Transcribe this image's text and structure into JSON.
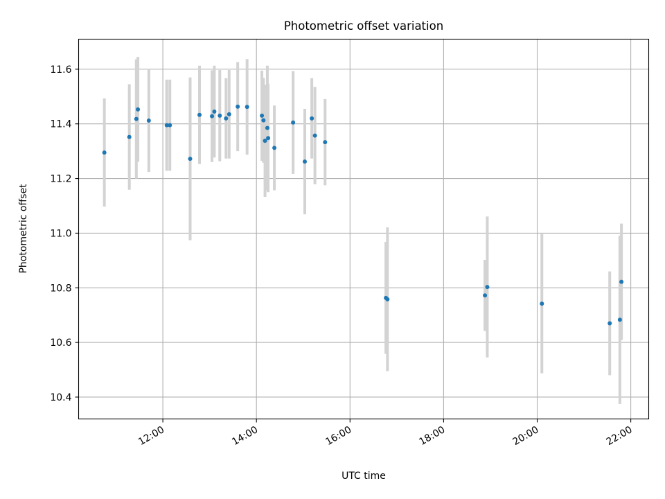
{
  "chart_data": {
    "type": "scatter",
    "title": "Photometric offset variation",
    "xlabel": "UTC time",
    "ylabel": "Photometric offset",
    "x_ticks": [
      "12:00",
      "14:00",
      "16:00",
      "18:00",
      "20:00",
      "22:00"
    ],
    "y_ticks": [
      "10.4",
      "10.6",
      "10.8",
      "11.0",
      "11.2",
      "11.4",
      "11.6"
    ],
    "xlim": [
      "10:12",
      "22:23"
    ],
    "ylim": [
      10.32,
      11.71
    ],
    "grid": true,
    "marker_color": "#1f77b4",
    "errorbar_color": "#d3d3d3",
    "points": [
      {
        "time": "10:45",
        "y": 11.295,
        "err": 0.198
      },
      {
        "time": "11:17",
        "y": 11.352,
        "err": 0.193
      },
      {
        "time": "11:26",
        "y": 11.418,
        "err": 0.218
      },
      {
        "time": "11:28",
        "y": 11.453,
        "err": 0.192
      },
      {
        "time": "11:42",
        "y": 11.412,
        "err": 0.188
      },
      {
        "time": "12:05",
        "y": 11.395,
        "err": 0.167
      },
      {
        "time": "12:09",
        "y": 11.395,
        "err": 0.167
      },
      {
        "time": "12:35",
        "y": 11.272,
        "err": 0.298
      },
      {
        "time": "12:47",
        "y": 11.433,
        "err": 0.18
      },
      {
        "time": "13:03",
        "y": 11.428,
        "err": 0.168
      },
      {
        "time": "13:06",
        "y": 11.445,
        "err": 0.168
      },
      {
        "time": "13:13",
        "y": 11.43,
        "err": 0.167
      },
      {
        "time": "13:21",
        "y": 11.42,
        "err": 0.147
      },
      {
        "time": "13:25",
        "y": 11.435,
        "err": 0.162
      },
      {
        "time": "13:36",
        "y": 11.463,
        "err": 0.163
      },
      {
        "time": "13:48",
        "y": 11.462,
        "err": 0.175
      },
      {
        "time": "14:07",
        "y": 11.43,
        "err": 0.165
      },
      {
        "time": "14:09",
        "y": 11.413,
        "err": 0.155
      },
      {
        "time": "14:11",
        "y": 11.338,
        "err": 0.205
      },
      {
        "time": "14:14",
        "y": 11.385,
        "err": 0.228
      },
      {
        "time": "14:15",
        "y": 11.348,
        "err": 0.198
      },
      {
        "time": "14:23",
        "y": 11.312,
        "err": 0.155
      },
      {
        "time": "14:47",
        "y": 11.405,
        "err": 0.188
      },
      {
        "time": "15:02",
        "y": 11.262,
        "err": 0.193
      },
      {
        "time": "15:11",
        "y": 11.42,
        "err": 0.147
      },
      {
        "time": "15:15",
        "y": 11.357,
        "err": 0.178
      },
      {
        "time": "15:28",
        "y": 11.333,
        "err": 0.158
      },
      {
        "time": "16:46",
        "y": 10.763,
        "err": 0.205
      },
      {
        "time": "16:48",
        "y": 10.758,
        "err": 0.263
      },
      {
        "time": "18:53",
        "y": 10.772,
        "err": 0.13
      },
      {
        "time": "18:56",
        "y": 10.803,
        "err": 0.258
      },
      {
        "time": "20:06",
        "y": 10.742,
        "err": 0.255
      },
      {
        "time": "21:33",
        "y": 10.67,
        "err": 0.19
      },
      {
        "time": "21:46",
        "y": 10.683,
        "err": 0.308
      },
      {
        "time": "21:48",
        "y": 10.822,
        "err": 0.213
      }
    ]
  }
}
